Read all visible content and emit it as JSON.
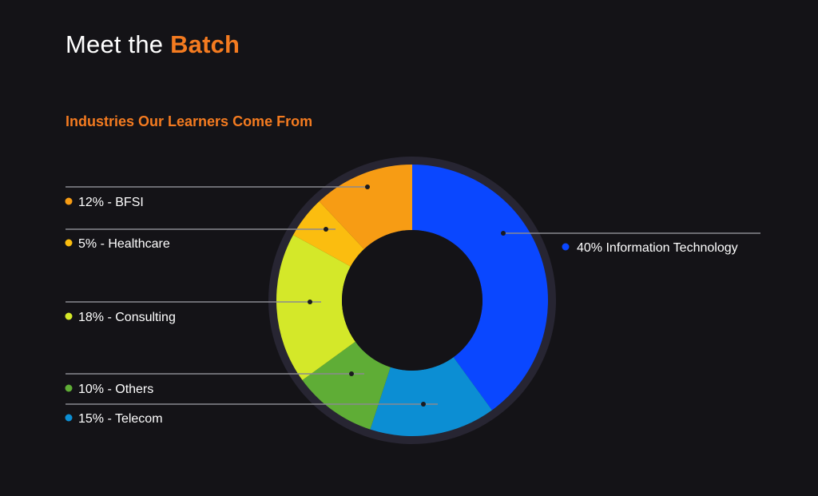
{
  "header": {
    "title_prefix": "Meet the",
    "title_accent": "Batch",
    "subtitle": "Industries Our Learners Come From"
  },
  "colors": {
    "background": "#141317",
    "accent": "#f47b20",
    "ring": "#272532",
    "leader": "#8a8a90",
    "text": "#ffffff"
  },
  "chart_data": {
    "type": "pie",
    "donut": true,
    "start": "12 o'clock, clockwise",
    "series": [
      {
        "name": "Information Technology",
        "value": 40,
        "label": "40% Information Technology",
        "color": "#0a47ff"
      },
      {
        "name": "Telecom",
        "value": 15,
        "label": "15% - Telecom",
        "color": "#0c8ed3"
      },
      {
        "name": "Others",
        "value": 10,
        "label": "10% - Others",
        "color": "#5fad36"
      },
      {
        "name": "Consulting",
        "value": 18,
        "label": "18% - Consulting",
        "color": "#d4e829"
      },
      {
        "name": "Healthcare",
        "value": 5,
        "label": "5% - Healthcare",
        "color": "#fbbd0f"
      },
      {
        "name": "BFSI",
        "value": 12,
        "label": "12% - BFSI",
        "color": "#f79c14"
      }
    ]
  }
}
